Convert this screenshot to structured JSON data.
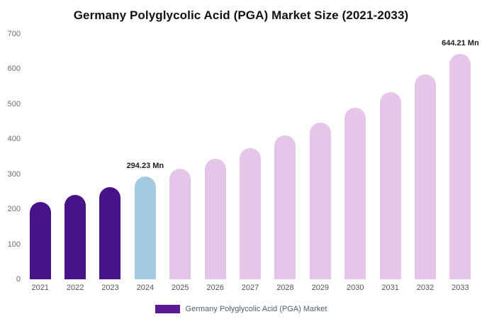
{
  "title": "Germany Polyglycolic Acid (PGA) Market Size (2021-2033)",
  "chart_data": {
    "type": "bar",
    "categories": [
      "2021",
      "2022",
      "2023",
      "2024",
      "2025",
      "2026",
      "2027",
      "2028",
      "2029",
      "2030",
      "2031",
      "2032",
      "2033"
    ],
    "values": [
      220,
      241,
      264,
      294.23,
      316,
      344,
      375,
      410,
      448,
      490,
      535,
      585,
      644.21
    ],
    "bar_colors": [
      "#481289",
      "#481289",
      "#481289",
      "#a3cce2",
      "#e5c5e8",
      "#e5c5e8",
      "#e5c5e8",
      "#e5c5e8",
      "#e5c5e8",
      "#e5c5e8",
      "#e5c5e8",
      "#e5c5e8",
      "#e5c5e8"
    ],
    "annotations": [
      {
        "index": 3,
        "text": "294.23 Mn"
      },
      {
        "index": 12,
        "text": "644.21 Mn"
      }
    ],
    "title": "Germany Polyglycolic Acid (PGA) Market Size (2021-2033)",
    "xlabel": "",
    "ylabel": "",
    "ylim": [
      0,
      700
    ],
    "yticks": [
      0,
      100,
      200,
      300,
      400,
      500,
      600,
      700
    ],
    "grid": false,
    "legend_position": "bottom",
    "legend": [
      {
        "label": "Germany Polyglycolic Acid (PGA) Market",
        "color": "#5b1a94"
      }
    ]
  }
}
